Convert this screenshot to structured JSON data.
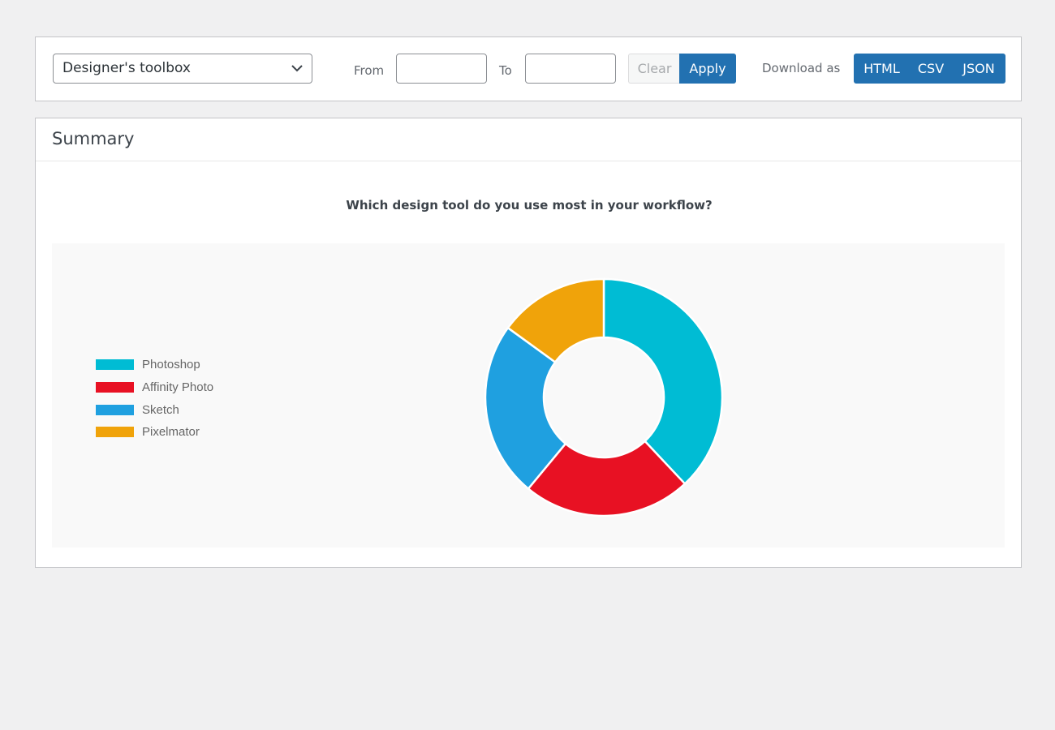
{
  "filters": {
    "survey_select": "Designer's toolbox",
    "from_label": "From",
    "to_label": "To",
    "from_value": "",
    "to_value": "",
    "clear_label": "Clear",
    "apply_label": "Apply",
    "download_label": "Download as",
    "download_options": [
      "HTML",
      "CSV",
      "JSON"
    ]
  },
  "summary": {
    "title": "Summary",
    "question": "Which design tool do you use most in your workflow?"
  },
  "chart_data": {
    "type": "pie",
    "variant": "donut",
    "title": "Which design tool do you use most in your workflow?",
    "categories": [
      "Photoshop",
      "Affinity Photo",
      "Sketch",
      "Pixelmator"
    ],
    "values": [
      38,
      23,
      24,
      15
    ],
    "colors": [
      "#00bcd4",
      "#e81123",
      "#1fa0e0",
      "#f0a30a"
    ],
    "legend": "left"
  },
  "colors": {
    "accent": "#2271b1",
    "page_bg": "#f0f0f1"
  }
}
